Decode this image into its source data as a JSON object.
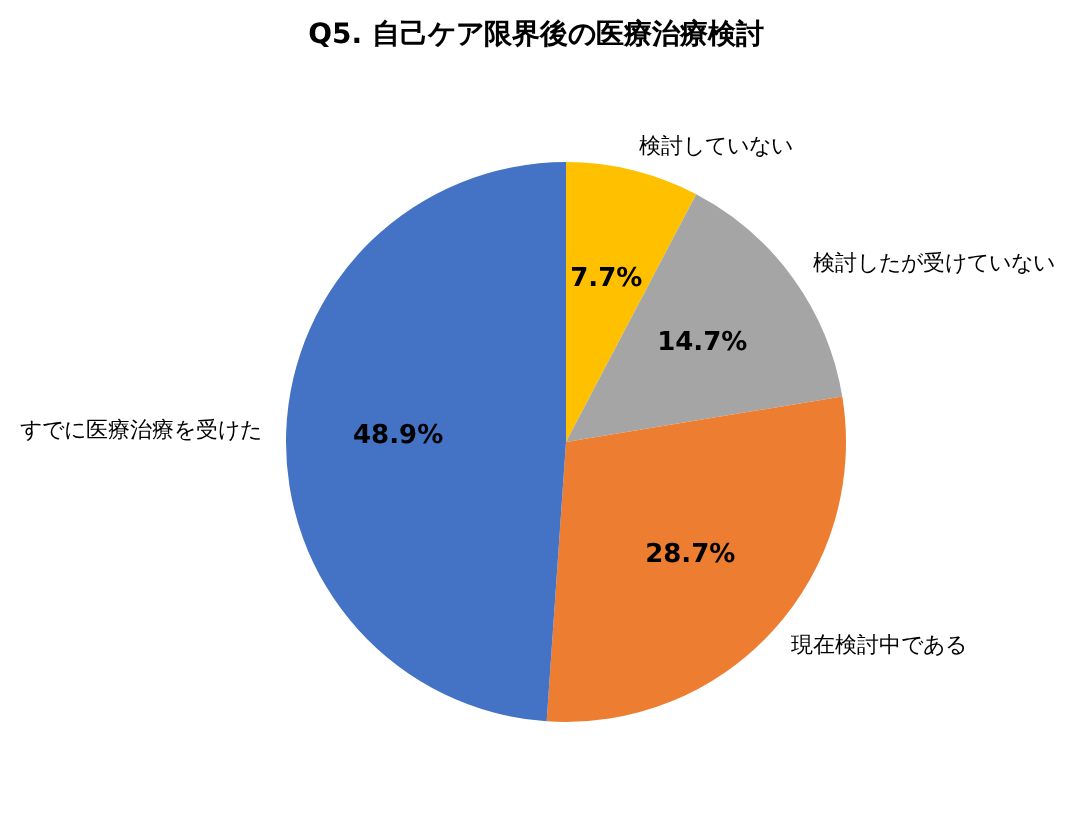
{
  "chart_data": {
    "type": "pie",
    "title": "Q5. 自己ケア限界後の医療治療検討",
    "categories": [
      "検討していない",
      "検討したが受けていない",
      "現在検討中である",
      "すでに医療治療を受けた"
    ],
    "values": [
      7.7,
      14.7,
      28.7,
      48.9
    ],
    "value_labels": [
      "7.7%",
      "14.7%",
      "28.7%",
      "48.9%"
    ],
    "colors": [
      "#ffc000",
      "#a5a5a5",
      "#ed7d31",
      "#4472c4"
    ],
    "legend": false
  }
}
